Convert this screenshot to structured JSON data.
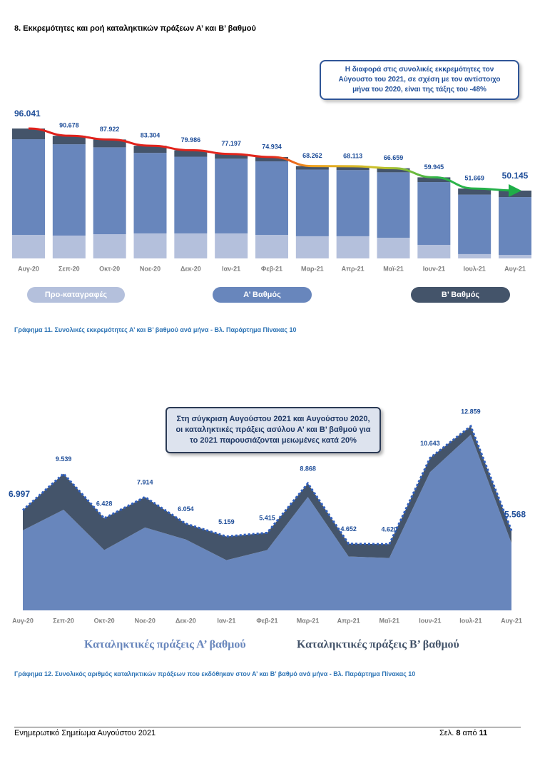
{
  "heading": "8. Εκκρεμότητες και ροή καταληκτικών πράξεων Α’ και Β’ βαθμού",
  "chart_data": [
    {
      "type": "stacked_bar",
      "annotation": "Η διαφορά στις συνολικές εκκρεμότητες τον Αύγουστο του 2021, σε σχέση με τον αντίστοιχο μήνα του 2020, είναι της τάξης του -48%",
      "categories": [
        "Αυγ-20",
        "Σεπ-20",
        "Οκτ-20",
        "Νοε-20",
        "Δεκ-20",
        "Ιαν-21",
        "Φεβ-21",
        "Μαρ-21",
        "Απρ-21",
        "Μαϊ-21",
        "Ιουν-21",
        "Ιουλ-21",
        "Αυγ-21"
      ],
      "series": [
        {
          "name": "Προ-καταγραφές",
          "color": "#b4c0dc",
          "values": [
            17400,
            16900,
            17900,
            18500,
            18500,
            18500,
            17400,
            16400,
            16400,
            15300,
            10000,
            3200,
            2600
          ]
        },
        {
          "name": "Α’ Βαθμός",
          "color": "#6886bc",
          "values": [
            70700,
            67478,
            64222,
            59504,
            56686,
            55197,
            54334,
            49262,
            48913,
            48359,
            46445,
            43969,
            42745
          ]
        },
        {
          "name": "Β’ Βαθμός",
          "color": "#44546a",
          "values": [
            7941,
            6300,
            5800,
            5300,
            4800,
            3500,
            3200,
            2600,
            2800,
            3000,
            3500,
            4500,
            4800
          ]
        }
      ],
      "totals": [
        96041,
        90678,
        87922,
        83304,
        79986,
        77197,
        74934,
        68262,
        68113,
        66659,
        59945,
        51669,
        50145
      ],
      "value_labels": [
        "96.041",
        "90.678",
        "87.922",
        "83.304",
        "79.986",
        "77.197",
        "74.934",
        "68.262",
        "68.113",
        "66.659",
        "59.945",
        "51.669",
        "50.145"
      ],
      "caption": "Γράφημα 11. Συνολικές εκκρεμότητες Α’ και Β’ βαθμού ανά μήνα - Βλ. Παράρτημα Πίνακας 10"
    },
    {
      "type": "stacked_area",
      "annotation": "Στη σύγκριση Αυγούστου 2021 και Αυγούστου 2020, οι καταληκτικές πράξεις ασύλου Α’ και Β’ βαθμού για το 2021 παρουσιάζονται μειωμένες κατά 20%",
      "categories": [
        "Αυγ-20",
        "Σεπ-20",
        "Οκτ-20",
        "Νοε-20",
        "Δεκ-20",
        "Ιαν-21",
        "Φεβ-21",
        "Μαρ-21",
        "Απρ-21",
        "Μαϊ-21",
        "Ιουν-21",
        "Ιουλ-21",
        "Αυγ-21"
      ],
      "series": [
        {
          "name": "Καταληκτικές πράξεις Α’ βαθμού",
          "color": "#6886bc",
          "values": [
            5590,
            7030,
            4210,
            5790,
            4950,
            3510,
            4210,
            7920,
            3760,
            3660,
            9650,
            12270,
            4700
          ]
        },
        {
          "name": "Καταληκτικές πράξεις Β’ βαθμού",
          "color": "#44546a",
          "values": [
            1407,
            2509,
            2218,
            2124,
            1104,
            1649,
            1205,
            948,
            892,
            960,
            993,
            589,
            868
          ]
        }
      ],
      "totals": [
        6997,
        9539,
        6428,
        7914,
        6054,
        5159,
        5415,
        8868,
        4652,
        4620,
        10643,
        12859,
        5568
      ],
      "value_labels": [
        "6.997",
        "9.539",
        "6.428",
        "7.914",
        "6.054",
        "5.159",
        "5.415",
        "8.868",
        "4.652",
        "4.620",
        "10.643",
        "12.859",
        "5.568"
      ],
      "caption": "Γράφημα 12. Συνολικός αριθμός καταληκτικών πράξεων που εκδόθηκαν στον Α’ και Β’ βαθμό ανά μήνα - Βλ. Παράρτημα Πίνακας 10"
    }
  ],
  "footer": {
    "title": "Ενημερωτικό Σημείωμα Αυγούστου 2021",
    "prefix": "Σελ.",
    "page": "8",
    "middle": "από",
    "total": "11"
  }
}
